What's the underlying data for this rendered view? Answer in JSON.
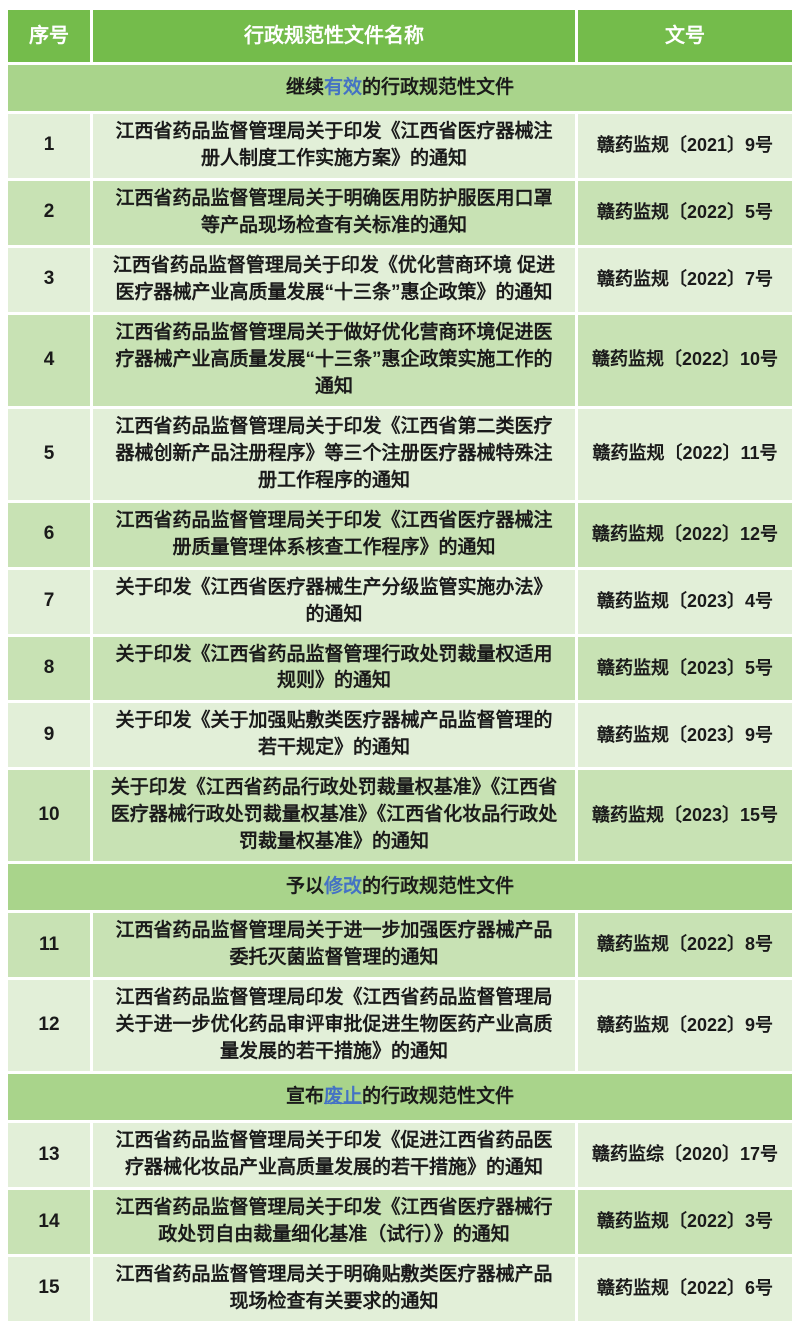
{
  "colors": {
    "header_bg": "#74bc4b",
    "header_text": "#ffffff",
    "section_bg": "#a9d48b",
    "row_light": "#e2efd8",
    "row_medium": "#c8e2b4",
    "text": "#1a1a1a",
    "highlight_blue": "#4472c4"
  },
  "table": {
    "headers": {
      "index": "序号",
      "name": "行政规范性文件名称",
      "doc_no": "文号"
    },
    "sections": [
      {
        "title": {
          "prefix": "继续",
          "highlight": "有效",
          "suffix": "的行政规范性文件",
          "underline_highlight": false
        },
        "rows": [
          {
            "index": "1",
            "name": "江西省药品监督管理局关于印发《江西省医疗器械注册人制度工作实施方案》的通知",
            "doc_no": "赣药监规〔2021〕9号",
            "tone": "light"
          },
          {
            "index": "2",
            "name": "江西省药品监督管理局关于明确医用防护服医用口罩等产品现场检查有关标准的通知",
            "doc_no": "赣药监规〔2022〕5号",
            "tone": "medium"
          },
          {
            "index": "3",
            "name": "江西省药品监督管理局关于印发《优化营商环境 促进医疗器械产业高质量发展“十三条”惠企政策》的通知",
            "doc_no": "赣药监规〔2022〕7号",
            "tone": "light"
          },
          {
            "index": "4",
            "name": "江西省药品监督管理局关于做好优化营商环境促进医疗器械产业高质量发展“十三条”惠企政策实施工作的通知",
            "doc_no": "赣药监规〔2022〕10号",
            "tone": "medium"
          },
          {
            "index": "5",
            "name": "江西省药品监督管理局关于印发《江西省第二类医疗器械创新产品注册程序》等三个注册医疗器械特殊注册工作程序的通知",
            "doc_no": "赣药监规〔2022〕11号",
            "tone": "light"
          },
          {
            "index": "6",
            "name": "江西省药品监督管理局关于印发《江西省医疗器械注册质量管理体系核查工作程序》的通知",
            "doc_no": "赣药监规〔2022〕12号",
            "tone": "medium"
          },
          {
            "index": "7",
            "name": "关于印发《江西省医疗器械生产分级监管实施办法》的通知",
            "doc_no": "赣药监规〔2023〕4号",
            "tone": "light"
          },
          {
            "index": "8",
            "name": "关于印发《江西省药品监督管理行政处罚裁量权适用规则》的通知",
            "doc_no": "赣药监规〔2023〕5号",
            "tone": "medium"
          },
          {
            "index": "9",
            "name": "关于印发《关于加强贴敷类医疗器械产品监督管理的若干规定》的通知",
            "doc_no": "赣药监规〔2023〕9号",
            "tone": "light"
          },
          {
            "index": "10",
            "name": "关于印发《江西省药品行政处罚裁量权基准》《江西省医疗器械行政处罚裁量权基准》《江西省化妆品行政处罚裁量权基准》的通知",
            "doc_no": "赣药监规〔2023〕15号",
            "tone": "medium"
          }
        ]
      },
      {
        "title": {
          "prefix": "予以",
          "highlight": "修改",
          "suffix": "的行政规范性文件",
          "underline_highlight": false
        },
        "rows": [
          {
            "index": "11",
            "name": "江西省药品监督管理局关于进一步加强医疗器械产品委托灭菌监督管理的通知",
            "doc_no": "赣药监规〔2022〕8号",
            "tone": "medium"
          },
          {
            "index": "12",
            "name": "江西省药品监督管理局印发《江西省药品监督管理局关于进一步优化药品审评审批促进生物医药产业高质量发展的若干措施》的通知",
            "doc_no": "赣药监规〔2022〕9号",
            "tone": "light"
          }
        ]
      },
      {
        "title": {
          "prefix": "宣布",
          "highlight": "废止",
          "suffix": "的行政规范性文件",
          "underline_highlight": true
        },
        "rows": [
          {
            "index": "13",
            "name": "江西省药品监督管理局关于印发《促进江西省药品医疗器械化妆品产业高质量发展的若干措施》的通知",
            "doc_no": "赣药监综〔2020〕17号",
            "tone": "light"
          },
          {
            "index": "14",
            "name": "江西省药品监督管理局关于印发《江西省医疗器械行政处罚自由裁量细化基准（试行）》的通知",
            "doc_no": "赣药监规〔2022〕3号",
            "tone": "medium"
          },
          {
            "index": "15",
            "name": "江西省药品监督管理局关于明确贴敷类医疗器械产品现场检查有关要求的通知",
            "doc_no": "赣药监规〔2022〕6号",
            "tone": "light"
          }
        ]
      }
    ]
  }
}
